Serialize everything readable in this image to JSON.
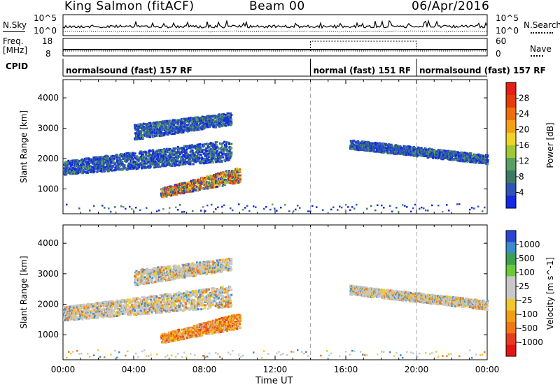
{
  "header": {
    "station": "King Salmon (fitACF)",
    "beam": "Beam 00",
    "date": "06/Apr/2016"
  },
  "noise_panel": {
    "left_label": "N.Sky",
    "left_ticks": [
      "10^5",
      "10^0"
    ],
    "right_label": "N.Search",
    "right_ticks": [
      "10^5",
      "10^0"
    ]
  },
  "freq_panel": {
    "left_label_1": "Freq.",
    "left_label_2": "[MHz]",
    "left_ticks": [
      "18",
      "8"
    ],
    "right_label": "Nave",
    "right_ticks": [
      "60",
      "0"
    ]
  },
  "cpid_panel": {
    "label": "CPID",
    "segments": [
      {
        "text": "normalsound (fast) 157 RF",
        "start_h": 0,
        "end_h": 14
      },
      {
        "text": "normal (fast) 151 RF",
        "start_h": 14,
        "end_h": 20
      },
      {
        "text": "normalsound (fast) 157 RF",
        "start_h": 20,
        "end_h": 24
      }
    ]
  },
  "x_axis": {
    "label": "Time UT",
    "ticks": [
      "00:00",
      "04:00",
      "08:00",
      "12:00",
      "16:00",
      "20:00",
      "00:00"
    ]
  },
  "chart_data": [
    {
      "type": "heatmap",
      "title": "",
      "xlabel": "Time UT",
      "ylabel": "Slant Range [km]",
      "xlim": [
        0,
        24
      ],
      "ylim": [
        180,
        4600
      ],
      "yticks": [
        "1000",
        "2000",
        "3000",
        "4000"
      ],
      "colorbar": {
        "label": "Power [dB]",
        "ticks": [
          "4",
          "8",
          "12",
          "16",
          "20",
          "24",
          "28"
        ],
        "colors": [
          "#1428e6",
          "#2e55b4",
          "#3c7a64",
          "#5aa064",
          "#a0c832",
          "#f0d228",
          "#f5a014",
          "#f06e0a",
          "#e63c0a",
          "#e61e14"
        ]
      },
      "regions": [
        {
          "t0": 0.0,
          "t1": 9.5,
          "r0": 1450,
          "r1": 1900,
          "r0e": 1900,
          "r1e": 2600,
          "level": "low"
        },
        {
          "t0": 4.0,
          "t1": 9.5,
          "r0": 2600,
          "r1": 3100,
          "r0e": 3100,
          "r1e": 3500,
          "level": "low"
        },
        {
          "t0": 5.5,
          "t1": 10.0,
          "r0": 700,
          "r1": 1000,
          "r0e": 1200,
          "r1e": 1700,
          "level": "high"
        },
        {
          "t0": 16.2,
          "t1": 24.0,
          "r0": 2300,
          "r1": 2600,
          "r0e": 1800,
          "r1e": 2100,
          "level": "low"
        }
      ]
    },
    {
      "type": "heatmap",
      "title": "",
      "xlabel": "Time UT",
      "ylabel": "Slant Range [km]",
      "xlim": [
        0,
        24
      ],
      "ylim": [
        180,
        4600
      ],
      "yticks": [
        "1000",
        "2000",
        "3000",
        "4000"
      ],
      "colorbar": {
        "label": "Velocity [m s^-1]",
        "ticks": [
          "1000",
          "500",
          "100",
          "25",
          "-25",
          "-100",
          "-500",
          "-1000"
        ],
        "colors": [
          "#2846d2",
          "#3c8cc8",
          "#3ca050",
          "#6ec83c",
          "#c8c8c8",
          "#c8c8c8",
          "#f0c828",
          "#f0a014",
          "#f07814",
          "#e63c1e",
          "#e61414"
        ]
      },
      "regions": [
        {
          "t0": 0.0,
          "t1": 9.5,
          "r0": 1450,
          "r1": 1900,
          "r0e": 1900,
          "r1e": 2600,
          "level": "gray"
        },
        {
          "t0": 4.0,
          "t1": 9.5,
          "r0": 2600,
          "r1": 3100,
          "r0e": 3100,
          "r1e": 3500,
          "level": "gray"
        },
        {
          "t0": 5.5,
          "t1": 10.0,
          "r0": 700,
          "r1": 1000,
          "r0e": 1200,
          "r1e": 1700,
          "level": "orange"
        },
        {
          "t0": 16.2,
          "t1": 24.0,
          "r0": 2300,
          "r1": 2600,
          "r0e": 1800,
          "r1e": 2100,
          "level": "gray"
        }
      ]
    }
  ],
  "dashed_markers_h": [
    14,
    20
  ]
}
